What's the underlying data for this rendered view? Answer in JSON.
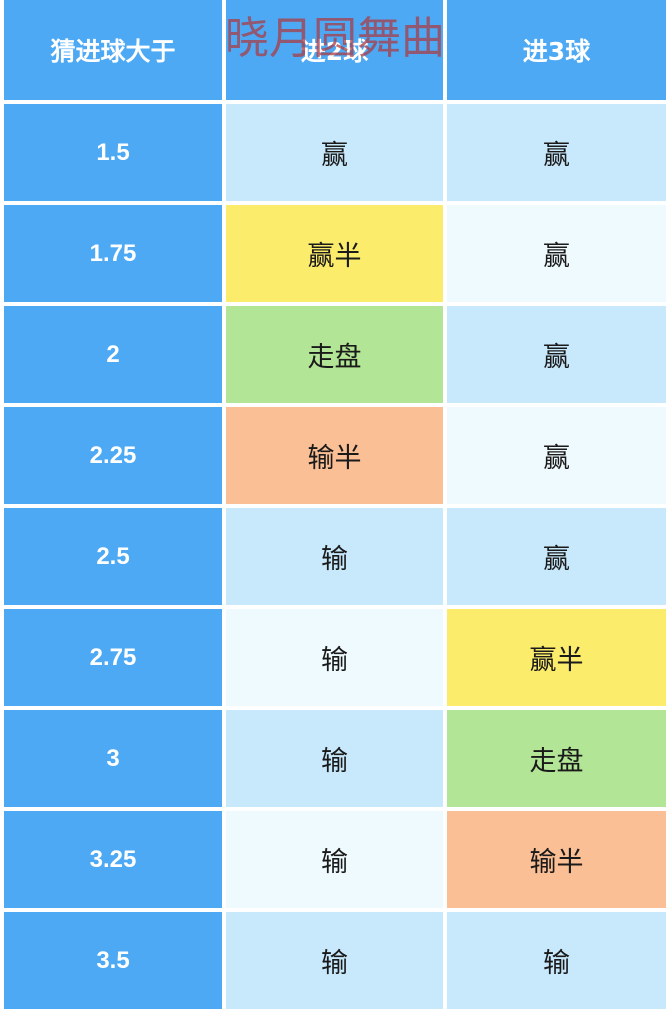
{
  "watermark": "晓月圆舞曲",
  "table": {
    "header": [
      "猜进球大于",
      "进2球",
      "进3球"
    ],
    "rows": [
      [
        "1.5",
        "赢",
        "赢"
      ],
      [
        "1.75",
        "赢半",
        "赢"
      ],
      [
        "2",
        "走盘",
        "赢"
      ],
      [
        "2.25",
        "输半",
        "赢"
      ],
      [
        "2.5",
        "输",
        "赢"
      ],
      [
        "2.75",
        "输",
        "赢半"
      ],
      [
        "3",
        "输",
        "走盘"
      ],
      [
        "3.25",
        "输",
        "输半"
      ],
      [
        "3.5",
        "输",
        "输"
      ]
    ]
  }
}
